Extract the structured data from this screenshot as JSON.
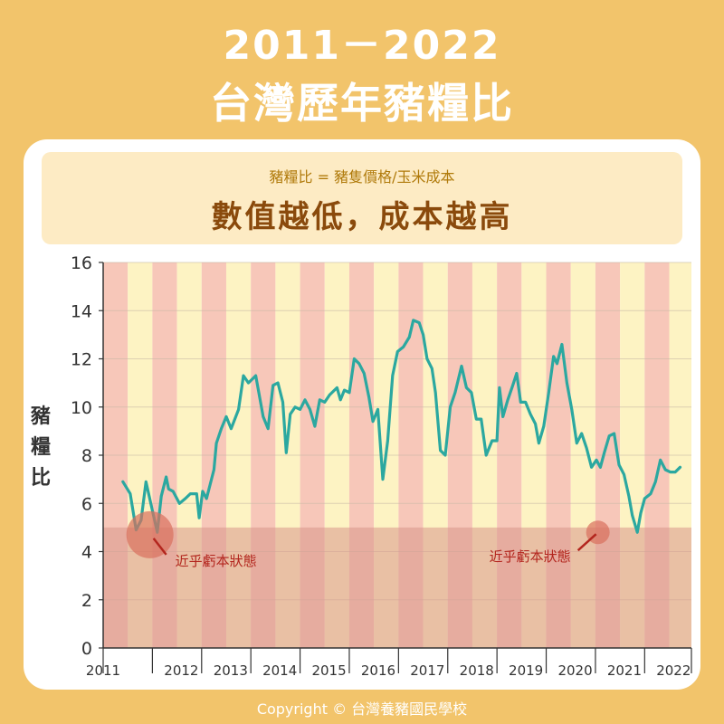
{
  "header": {
    "title_line1": "2011－2022",
    "title_line2": "台灣歷年豬糧比"
  },
  "info": {
    "formula": "豬糧比 = 豬隻價格/玉米成本",
    "headline": "數值越低，成本越高"
  },
  "ylabel_chars": [
    "豬",
    "糧",
    "比"
  ],
  "footer": "Copyright © 台灣養豬國民學校",
  "colors": {
    "background": "#f2c46b",
    "line": "#2ba8a0",
    "band_red": "#f7c7b9",
    "band_yellow": "#fdf3c3",
    "loss_zone": "#d9968a",
    "marker": "#d9705e",
    "annotation": "#b3261e"
  },
  "chart_data": {
    "type": "line",
    "title": "",
    "xlabel": "",
    "ylabel": "豬糧比",
    "xlim": [
      2011,
      2022.95
    ],
    "ylim": [
      0,
      16
    ],
    "yticks": [
      0,
      2,
      4,
      6,
      8,
      10,
      12,
      14,
      16
    ],
    "xtick_labels": [
      "2011",
      "2012",
      "2013",
      "2014",
      "2015",
      "2016",
      "2017",
      "2018",
      "2019",
      "2020",
      "2021",
      "2022"
    ],
    "grid": true,
    "loss_threshold": 5,
    "annotations": [
      {
        "text": "近乎虧本狀態",
        "x": 2011.95,
        "y": 4.7
      },
      {
        "text": "近乎虧本狀態",
        "x": 2021.05,
        "y": 4.8
      }
    ],
    "series": [
      {
        "points": [
          [
            2011.4,
            6.9
          ],
          [
            2011.55,
            6.4
          ],
          [
            2011.67,
            4.9
          ],
          [
            2011.77,
            5.3
          ],
          [
            2011.87,
            6.9
          ],
          [
            2012.0,
            5.7
          ],
          [
            2012.1,
            4.8
          ],
          [
            2012.18,
            6.3
          ],
          [
            2012.28,
            7.1
          ],
          [
            2012.33,
            6.6
          ],
          [
            2012.42,
            6.5
          ],
          [
            2012.55,
            6.0
          ],
          [
            2012.67,
            6.2
          ],
          [
            2012.77,
            6.4
          ],
          [
            2012.9,
            6.4
          ],
          [
            2012.95,
            5.4
          ],
          [
            2013.02,
            6.5
          ],
          [
            2013.1,
            6.2
          ],
          [
            2013.25,
            7.4
          ],
          [
            2013.3,
            8.5
          ],
          [
            2013.4,
            9.1
          ],
          [
            2013.5,
            9.6
          ],
          [
            2013.6,
            9.1
          ],
          [
            2013.75,
            9.9
          ],
          [
            2013.85,
            11.3
          ],
          [
            2013.95,
            11.0
          ],
          [
            2014.1,
            11.3
          ],
          [
            2014.25,
            9.6
          ],
          [
            2014.35,
            9.1
          ],
          [
            2014.45,
            10.9
          ],
          [
            2014.55,
            11.0
          ],
          [
            2014.65,
            10.2
          ],
          [
            2014.72,
            8.1
          ],
          [
            2014.8,
            9.7
          ],
          [
            2014.9,
            10.0
          ],
          [
            2015.0,
            9.9
          ],
          [
            2015.1,
            10.3
          ],
          [
            2015.2,
            9.9
          ],
          [
            2015.3,
            9.2
          ],
          [
            2015.4,
            10.3
          ],
          [
            2015.5,
            10.2
          ],
          [
            2015.6,
            10.5
          ],
          [
            2015.75,
            10.8
          ],
          [
            2015.82,
            10.3
          ],
          [
            2015.9,
            10.7
          ],
          [
            2016.0,
            10.6
          ],
          [
            2016.1,
            12.0
          ],
          [
            2016.2,
            11.8
          ],
          [
            2016.3,
            11.4
          ],
          [
            2016.4,
            10.4
          ],
          [
            2016.48,
            9.4
          ],
          [
            2016.58,
            9.9
          ],
          [
            2016.68,
            7.0
          ],
          [
            2016.78,
            8.6
          ],
          [
            2016.88,
            11.3
          ],
          [
            2016.98,
            12.3
          ],
          [
            2017.1,
            12.5
          ],
          [
            2017.22,
            12.9
          ],
          [
            2017.3,
            13.6
          ],
          [
            2017.42,
            13.5
          ],
          [
            2017.5,
            13.0
          ],
          [
            2017.58,
            12.0
          ],
          [
            2017.68,
            11.6
          ],
          [
            2017.75,
            10.6
          ],
          [
            2017.85,
            8.2
          ],
          [
            2017.95,
            8.0
          ],
          [
            2018.05,
            10.0
          ],
          [
            2018.15,
            10.6
          ],
          [
            2018.28,
            11.7
          ],
          [
            2018.38,
            10.8
          ],
          [
            2018.48,
            10.6
          ],
          [
            2018.58,
            9.5
          ],
          [
            2018.68,
            9.5
          ],
          [
            2018.78,
            8.0
          ],
          [
            2018.9,
            8.6
          ],
          [
            2019.0,
            8.6
          ],
          [
            2019.05,
            10.8
          ],
          [
            2019.12,
            9.6
          ],
          [
            2019.22,
            10.3
          ],
          [
            2019.32,
            10.9
          ],
          [
            2019.4,
            11.4
          ],
          [
            2019.48,
            10.2
          ],
          [
            2019.58,
            10.2
          ],
          [
            2019.68,
            9.7
          ],
          [
            2019.78,
            9.3
          ],
          [
            2019.85,
            8.5
          ],
          [
            2019.95,
            9.2
          ],
          [
            2020.05,
            10.6
          ],
          [
            2020.15,
            12.1
          ],
          [
            2020.22,
            11.8
          ],
          [
            2020.32,
            12.6
          ],
          [
            2020.42,
            11.0
          ],
          [
            2020.52,
            9.9
          ],
          [
            2020.62,
            8.5
          ],
          [
            2020.72,
            8.9
          ],
          [
            2020.82,
            8.3
          ],
          [
            2020.92,
            7.5
          ],
          [
            2021.02,
            7.8
          ],
          [
            2021.1,
            7.5
          ],
          [
            2021.18,
            8.1
          ],
          [
            2021.28,
            8.8
          ],
          [
            2021.38,
            8.9
          ],
          [
            2021.48,
            7.6
          ],
          [
            2021.58,
            7.2
          ],
          [
            2021.68,
            6.3
          ],
          [
            2021.75,
            5.5
          ],
          [
            2021.85,
            4.8
          ],
          [
            2021.92,
            5.6
          ],
          [
            2022.0,
            6.2
          ],
          [
            2022.12,
            6.4
          ],
          [
            2022.22,
            6.9
          ],
          [
            2022.32,
            7.8
          ],
          [
            2022.42,
            7.4
          ],
          [
            2022.52,
            7.3
          ],
          [
            2022.62,
            7.3
          ],
          [
            2022.72,
            7.5
          ]
        ]
      }
    ]
  }
}
